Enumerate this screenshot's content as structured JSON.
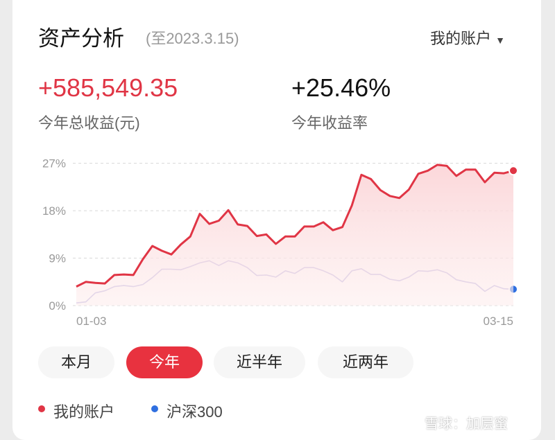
{
  "header": {
    "title": "资产分析",
    "date": "(至2023.3.15)",
    "account": "我的账户"
  },
  "stats": [
    {
      "value": "+585,549.35",
      "label": "今年总收益(元)",
      "color": "#e03545"
    },
    {
      "value": "+25.46%",
      "label": "今年收益率",
      "color": "#111111"
    }
  ],
  "tabs": [
    "本月",
    "今年",
    "近半年",
    "近两年"
  ],
  "active_tab": 1,
  "watermark": "雪球：加层蜜",
  "chart_data": {
    "type": "line",
    "categories": [
      "01-03",
      null,
      null,
      null,
      null,
      null,
      null,
      null,
      null,
      null,
      null,
      null,
      null,
      null,
      null,
      null,
      null,
      null,
      null,
      null,
      null,
      null,
      null,
      null,
      null,
      null,
      null,
      null,
      null,
      null,
      null,
      null,
      null,
      null,
      null,
      null,
      null,
      null,
      null,
      null,
      null,
      null,
      null,
      null,
      null,
      null,
      "03-15"
    ],
    "ylim": [
      0,
      28
    ],
    "yticks": [
      {
        "value": 0,
        "label": "0%"
      },
      {
        "value": 9,
        "label": "9%"
      },
      {
        "value": 18,
        "label": "18%"
      },
      {
        "value": 27,
        "label": "27%"
      }
    ],
    "grid": true,
    "series": [
      {
        "name": "我的账户",
        "color": "#e03545",
        "line_color": "#e03545",
        "fill": true,
        "values": [
          3.6,
          4.5,
          4.3,
          4.2,
          5.8,
          5.9,
          5.8,
          8.8,
          11.3,
          10.4,
          9.7,
          11.6,
          13.1,
          17.4,
          15.5,
          16.1,
          18.1,
          15.4,
          15.1,
          13.2,
          13.5,
          11.7,
          13.1,
          13.1,
          15.0,
          15.0,
          15.8,
          14.3,
          14.9,
          19.0,
          24.8,
          24.0,
          21.9,
          20.8,
          20.4,
          22.0,
          25.0,
          25.6,
          26.7,
          26.5,
          24.6,
          25.8,
          25.8,
          23.4,
          25.2,
          25.1,
          25.6
        ]
      },
      {
        "name": "沪深300",
        "color": "#2f6fe0",
        "line_color": "#b9b2e2",
        "fill": false,
        "values": [
          0.5,
          0.7,
          2.4,
          2.8,
          3.6,
          3.8,
          3.6,
          4.0,
          5.3,
          6.9,
          6.9,
          6.8,
          7.4,
          8.1,
          8.5,
          7.6,
          8.5,
          8.1,
          7.2,
          5.7,
          5.8,
          5.4,
          6.6,
          6.1,
          7.2,
          7.2,
          6.6,
          5.8,
          4.5,
          6.6,
          7.0,
          5.9,
          5.9,
          5.0,
          4.7,
          5.4,
          6.6,
          6.5,
          6.8,
          6.2,
          4.9,
          4.5,
          4.2,
          2.7,
          3.8,
          3.2,
          3.1
        ]
      }
    ]
  }
}
